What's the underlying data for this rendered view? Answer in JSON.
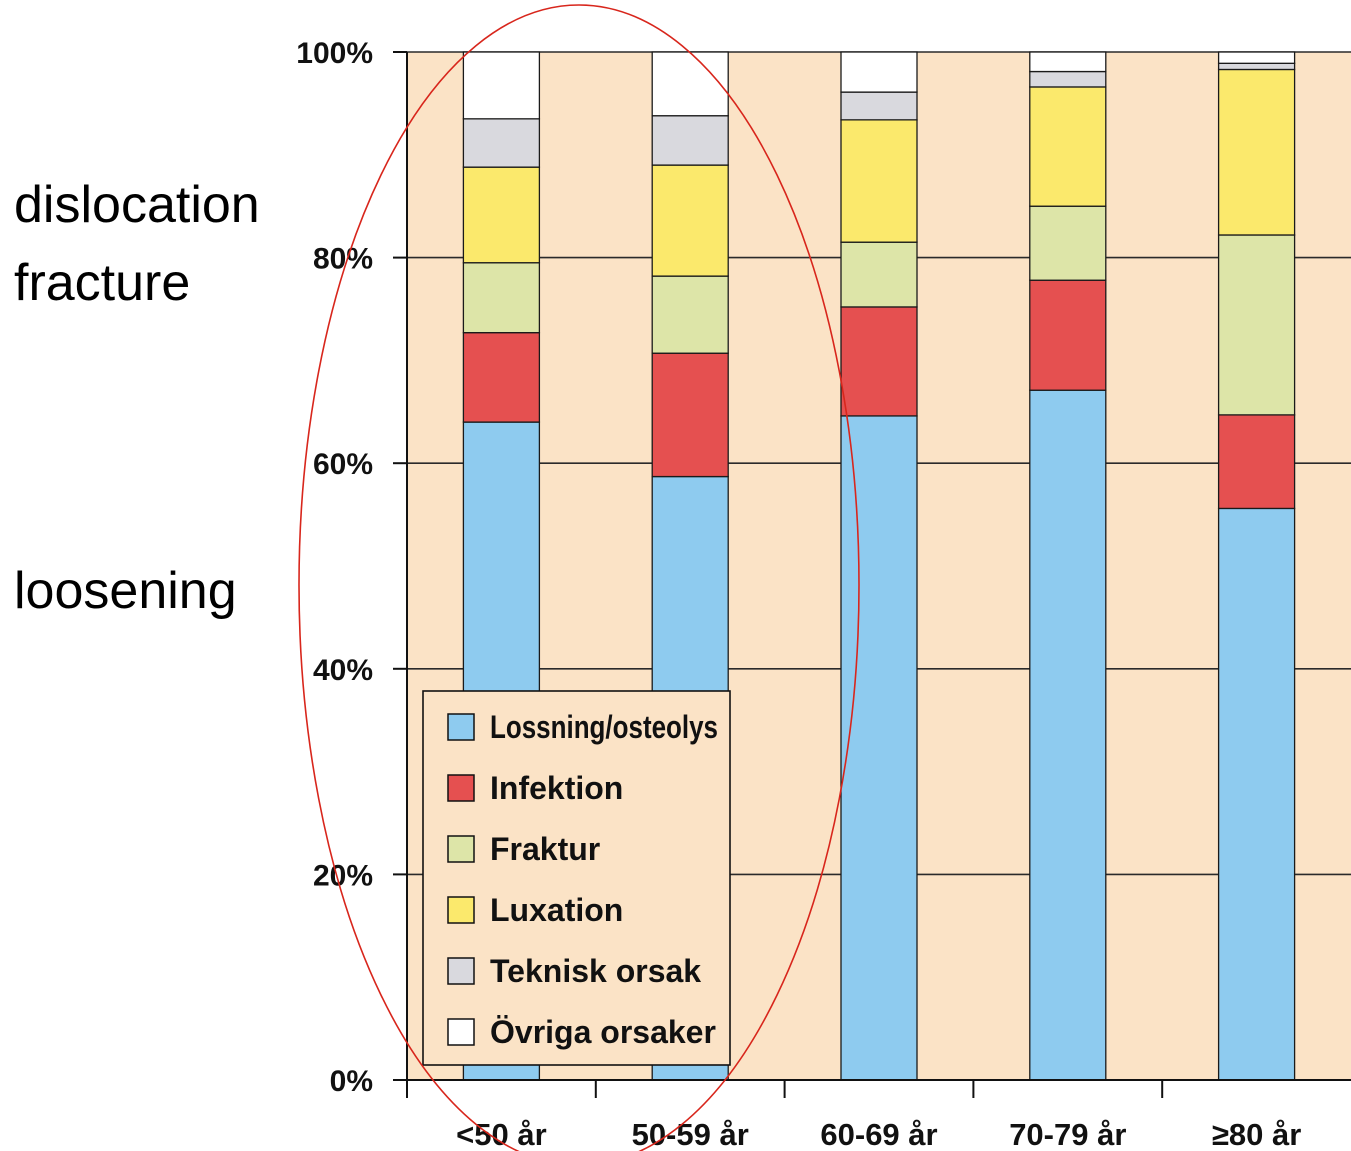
{
  "chart_data": {
    "type": "bar",
    "stacked": true,
    "categories": [
      "<50 år",
      "50-59 år",
      "60-69 år",
      "70-79 år",
      "≥80 år"
    ],
    "series": [
      {
        "name": "Lossning/osteolys",
        "color": "#8ecbef",
        "values": [
          64,
          58.7,
          64.6,
          67.1,
          55.6
        ]
      },
      {
        "name": "Infektion",
        "color": "#e55050",
        "values": [
          8.7,
          12.0,
          10.6,
          10.7,
          9.1
        ]
      },
      {
        "name": "Fraktur",
        "color": "#dde5a8",
        "values": [
          6.8,
          7.5,
          6.3,
          7.2,
          17.5
        ]
      },
      {
        "name": "Luxation",
        "color": "#fbe96c",
        "values": [
          9.3,
          10.8,
          11.9,
          11.6,
          16.1
        ]
      },
      {
        "name": "Teknisk orsak",
        "color": "#d9d9de",
        "values": [
          4.7,
          4.8,
          2.7,
          1.5,
          0.6
        ]
      },
      {
        "name": "Övriga orsaker",
        "color": "#ffffff",
        "values": [
          6.5,
          6.2,
          3.9,
          1.9,
          1.1
        ]
      }
    ],
    "ylim": [
      0,
      100
    ],
    "yticks": [
      "0%",
      "20%",
      "40%",
      "60%",
      "80%",
      "100%"
    ],
    "ytick_values": [
      0,
      20,
      40,
      60,
      80,
      100
    ],
    "grid": true,
    "legend_position": "bottom-left",
    "plot_background": "#fbe3c6"
  },
  "annotations": {
    "dislocation": "dislocation",
    "fracture": "fracture",
    "loosening": "loosening"
  }
}
